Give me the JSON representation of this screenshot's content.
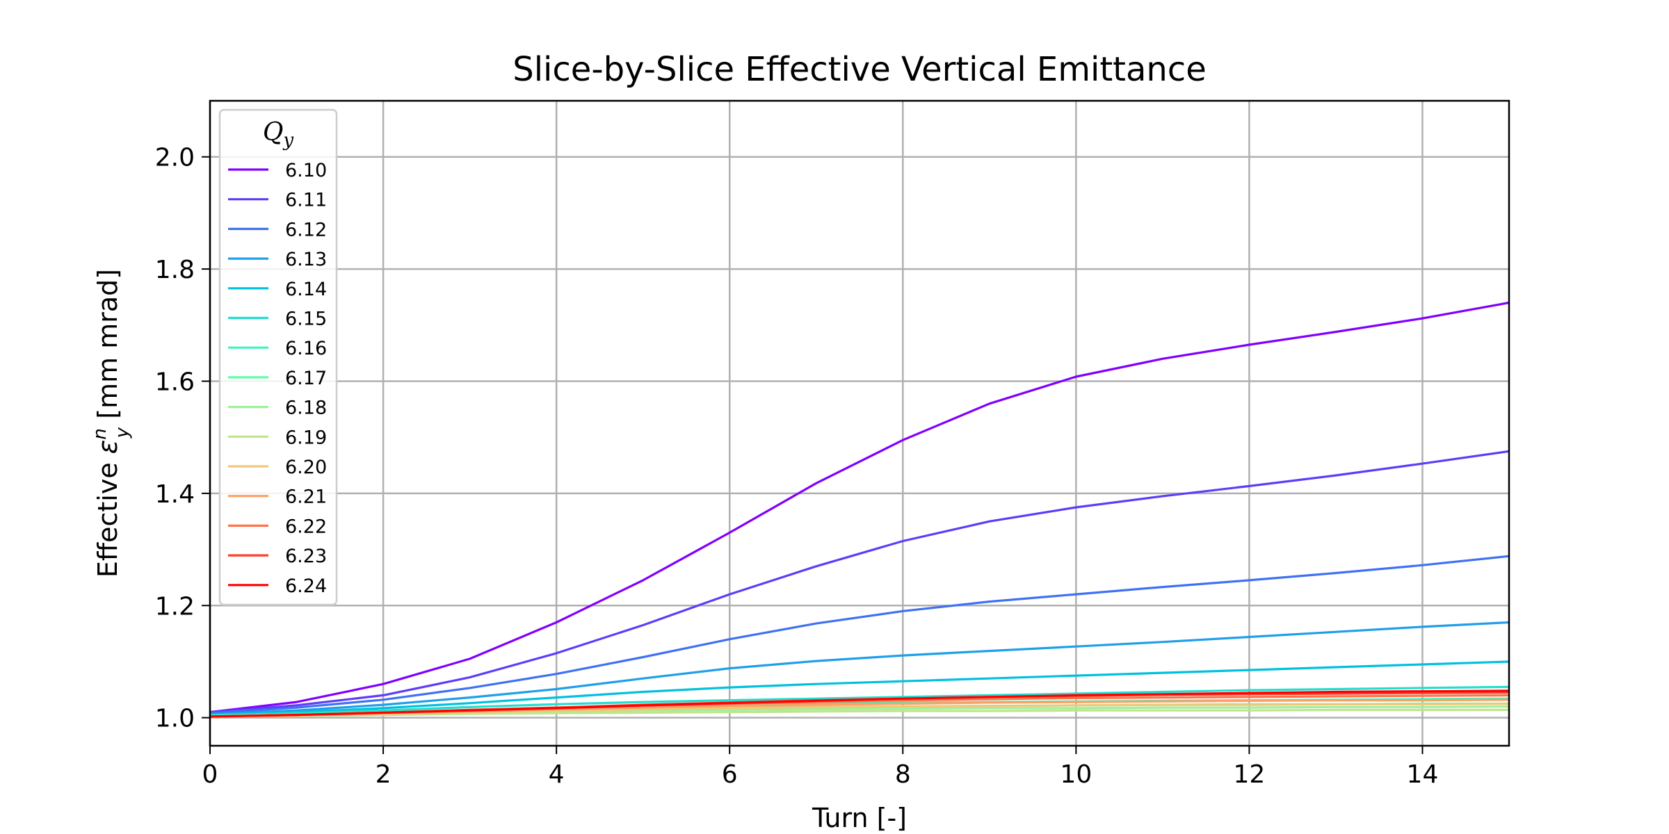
{
  "chart_data": {
    "type": "line",
    "title": "Slice-by-Slice Effective Vertical Emittance",
    "xlabel": "Turn [-]",
    "ylabel": "Effective ε_y^n [mm mrad]",
    "ylabel_parts": {
      "prefix": "Effective ",
      "symbol": "ε",
      "sup": "n",
      "sub": "y",
      "suffix": " [mm mrad]"
    },
    "xlim": [
      0,
      15
    ],
    "ylim": [
      0.95,
      2.1
    ],
    "xticks": [
      0,
      2,
      4,
      6,
      8,
      10,
      12,
      14
    ],
    "yticks": [
      1.0,
      1.2,
      1.4,
      1.6,
      1.8,
      2.0
    ],
    "xtick_labels": [
      "0",
      "2",
      "4",
      "6",
      "8",
      "10",
      "12",
      "14"
    ],
    "ytick_labels": [
      "1.0",
      "1.2",
      "1.4",
      "1.6",
      "1.8",
      "2.0"
    ],
    "grid": true,
    "legend_title": "Q_y",
    "legend_title_parts": {
      "base": "Q",
      "sub": "y"
    },
    "legend_position": "top-left",
    "x": [
      0,
      1,
      2,
      3,
      4,
      5,
      6,
      7,
      8,
      9,
      10,
      11,
      12,
      13,
      14,
      15
    ],
    "series": [
      {
        "name": "6.10",
        "color": "#8000ff",
        "values": [
          1.01,
          1.028,
          1.06,
          1.105,
          1.17,
          1.245,
          1.33,
          1.418,
          1.495,
          1.56,
          1.608,
          1.64,
          1.665,
          1.688,
          1.712,
          1.74
        ]
      },
      {
        "name": "6.11",
        "color": "#5f3cf9",
        "values": [
          1.01,
          1.022,
          1.04,
          1.072,
          1.115,
          1.165,
          1.22,
          1.27,
          1.315,
          1.35,
          1.375,
          1.395,
          1.413,
          1.432,
          1.453,
          1.475
        ]
      },
      {
        "name": "6.12",
        "color": "#3f71f3",
        "values": [
          1.008,
          1.018,
          1.032,
          1.053,
          1.078,
          1.108,
          1.14,
          1.168,
          1.19,
          1.207,
          1.22,
          1.233,
          1.245,
          1.258,
          1.272,
          1.288
        ]
      },
      {
        "name": "6.13",
        "color": "#1f9fe9",
        "values": [
          1.006,
          1.013,
          1.023,
          1.036,
          1.051,
          1.07,
          1.088,
          1.101,
          1.111,
          1.119,
          1.127,
          1.135,
          1.144,
          1.153,
          1.162,
          1.17
        ]
      },
      {
        "name": "6.14",
        "color": "#00c0e0",
        "values": [
          1.005,
          1.01,
          1.017,
          1.026,
          1.036,
          1.046,
          1.054,
          1.06,
          1.065,
          1.07,
          1.075,
          1.08,
          1.085,
          1.09,
          1.095,
          1.1
        ]
      },
      {
        "name": "6.15",
        "color": "#20dfd0",
        "values": [
          1.004,
          1.008,
          1.013,
          1.019,
          1.024,
          1.028,
          1.031,
          1.034,
          1.037,
          1.04,
          1.043,
          1.046,
          1.049,
          1.051,
          1.053,
          1.055
        ]
      },
      {
        "name": "6.16",
        "color": "#40f3be",
        "values": [
          1.003,
          1.006,
          1.01,
          1.014,
          1.018,
          1.021,
          1.023,
          1.025,
          1.027,
          1.028,
          1.029,
          1.03,
          1.031,
          1.032,
          1.033,
          1.034
        ]
      },
      {
        "name": "6.17",
        "color": "#60fdab",
        "values": [
          1.002,
          1.005,
          1.008,
          1.011,
          1.014,
          1.016,
          1.018,
          1.019,
          1.02,
          1.021,
          1.022,
          1.023,
          1.024,
          1.024,
          1.025,
          1.025
        ]
      },
      {
        "name": "6.18",
        "color": "#a0f09a",
        "values": [
          1.002,
          1.004,
          1.006,
          1.009,
          1.011,
          1.013,
          1.014,
          1.015,
          1.016,
          1.017,
          1.017,
          1.018,
          1.018,
          1.019,
          1.019,
          1.02
        ]
      },
      {
        "name": "6.19",
        "color": "#c0e58a",
        "values": [
          1.001,
          1.003,
          1.005,
          1.007,
          1.008,
          1.009,
          1.01,
          1.011,
          1.012,
          1.012,
          1.013,
          1.013,
          1.013,
          1.014,
          1.014,
          1.014
        ]
      },
      {
        "name": "6.20",
        "color": "#f0c77a",
        "values": [
          1.001,
          1.004,
          1.007,
          1.01,
          1.013,
          1.015,
          1.017,
          1.019,
          1.02,
          1.021,
          1.022,
          1.023,
          1.023,
          1.024,
          1.024,
          1.025
        ]
      },
      {
        "name": "6.21",
        "color": "#ff9f64",
        "values": [
          1.001,
          1.004,
          1.008,
          1.011,
          1.015,
          1.018,
          1.021,
          1.023,
          1.025,
          1.027,
          1.028,
          1.029,
          1.03,
          1.031,
          1.031,
          1.032
        ]
      },
      {
        "name": "6.22",
        "color": "#ff7248",
        "values": [
          1.002,
          1.005,
          1.009,
          1.013,
          1.017,
          1.021,
          1.025,
          1.028,
          1.031,
          1.033,
          1.035,
          1.036,
          1.037,
          1.038,
          1.039,
          1.04
        ]
      },
      {
        "name": "6.23",
        "color": "#ff3c28",
        "values": [
          1.002,
          1.005,
          1.009,
          1.014,
          1.018,
          1.023,
          1.027,
          1.031,
          1.034,
          1.037,
          1.039,
          1.041,
          1.042,
          1.043,
          1.044,
          1.045
        ]
      },
      {
        "name": "6.24",
        "color": "#ff0000",
        "values": [
          1.002,
          1.005,
          1.009,
          1.013,
          1.017,
          1.022,
          1.026,
          1.03,
          1.034,
          1.037,
          1.04,
          1.042,
          1.044,
          1.046,
          1.047,
          1.048
        ]
      }
    ]
  }
}
